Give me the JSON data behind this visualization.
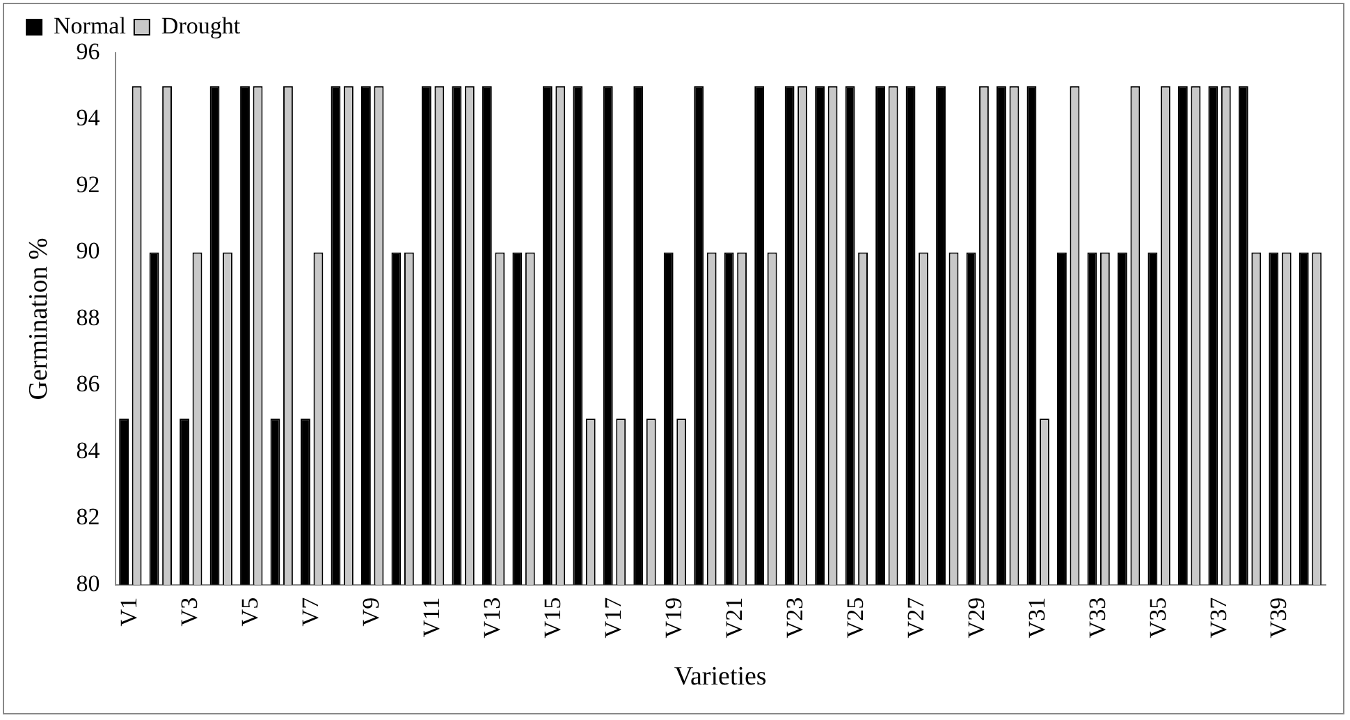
{
  "chart_data": {
    "type": "bar",
    "xlabel": "Varieties",
    "ylabel": "Germination %",
    "categories": [
      "V1",
      null,
      "V3",
      null,
      "V5",
      null,
      "V7",
      null,
      "V9",
      null,
      "V11",
      null,
      "V13",
      null,
      "V15",
      null,
      "V17",
      null,
      "V19",
      null,
      "V21",
      null,
      "V23",
      null,
      "V25",
      null,
      "V27",
      null,
      "V29",
      null,
      "V31",
      null,
      "V33",
      null,
      "V35",
      null,
      "V37",
      null,
      "V39",
      null
    ],
    "series": [
      {
        "name": "Normal",
        "color": "#000000",
        "values": [
          85,
          90,
          85,
          95,
          95,
          85,
          85,
          95,
          95,
          90,
          95,
          95,
          95,
          90,
          95,
          95,
          95,
          95,
          90,
          95,
          90,
          95,
          95,
          95,
          95,
          95,
          95,
          95,
          90,
          95,
          95,
          90,
          90,
          90,
          90,
          95,
          95,
          95,
          90,
          90
        ]
      },
      {
        "name": "Drought",
        "color": "#c8c8c8",
        "values": [
          95,
          95,
          90,
          90,
          95,
          95,
          90,
          95,
          95,
          90,
          95,
          95,
          90,
          90,
          95,
          85,
          85,
          85,
          85,
          90,
          90,
          90,
          95,
          95,
          90,
          95,
          90,
          90,
          95,
          95,
          85,
          95,
          90,
          95,
          95,
          95,
          95,
          90,
          90,
          90
        ]
      }
    ],
    "ylim": [
      80,
      96
    ],
    "yticks": [
      80,
      82,
      84,
      86,
      88,
      90,
      92,
      94,
      96
    ],
    "grid": false,
    "legend": "top left"
  }
}
